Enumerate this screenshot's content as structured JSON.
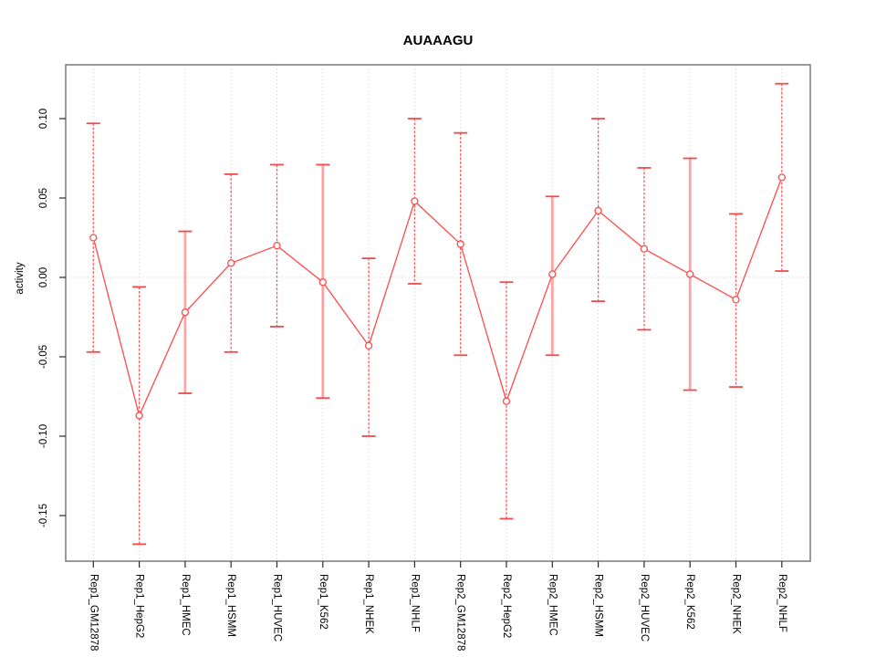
{
  "window": {
    "background": "#ffffff"
  },
  "chart_data": {
    "type": "line",
    "title": "AUAAAGU",
    "xlabel": "",
    "ylabel": "activity",
    "legend_position": "none",
    "point_marker": "open-circle",
    "grid": {
      "vertical_dotted": true,
      "zero_line_dotted": true
    },
    "categories": [
      "Rep1_GM12878",
      "Rep1_HepG2",
      "Rep1_HMEC",
      "Rep1_HSMM",
      "Rep1_HUVEC",
      "Rep1_K562",
      "Rep1_NHEK",
      "Rep1_NHLF",
      "Rep2_GM12878",
      "Rep2_HepG2",
      "Rep2_HMEC",
      "Rep2_HSMM",
      "Rep2_HUVEC",
      "Rep2_K562",
      "Rep2_NHEK",
      "Rep2_NHLF"
    ],
    "series": [
      {
        "name": "activity",
        "values": [
          0.025,
          -0.087,
          -0.022,
          0.009,
          0.02,
          -0.003,
          -0.043,
          0.048,
          0.021,
          -0.078,
          0.002,
          0.042,
          0.018,
          0.002,
          -0.014,
          0.063
        ],
        "error_high": [
          0.097,
          -0.006,
          0.029,
          0.065,
          0.071,
          0.071,
          0.012,
          0.1,
          0.091,
          -0.003,
          0.051,
          0.1,
          0.069,
          0.075,
          0.04,
          0.122
        ],
        "error_low": [
          -0.047,
          -0.168,
          -0.073,
          -0.047,
          -0.031,
          -0.076,
          -0.1,
          -0.004,
          -0.049,
          -0.152,
          -0.049,
          -0.015,
          -0.033,
          -0.071,
          -0.069,
          0.004
        ]
      }
    ],
    "yticks": [
      -0.15,
      -0.1,
      -0.05,
      0.0,
      0.05,
      0.1
    ],
    "ytick_labels": [
      "-0.15",
      "-0.10",
      "-0.05",
      "0.00",
      "0.05",
      "0.10"
    ],
    "ylim": [
      -0.179,
      0.134
    ],
    "thick_error_bar_indices": [
      2,
      5,
      10,
      13
    ],
    "colors": {
      "series_line": "#ff4a4a",
      "marker_stroke": "#ff4a4a",
      "error_bar_thin": "#ff5555",
      "error_bar_thick": "#ffa3a3",
      "error_cap": "#f34b4b",
      "grid": "#dcdcdc",
      "frame": "#707070",
      "tick": "#2a2a2a",
      "text": "#000000"
    }
  }
}
